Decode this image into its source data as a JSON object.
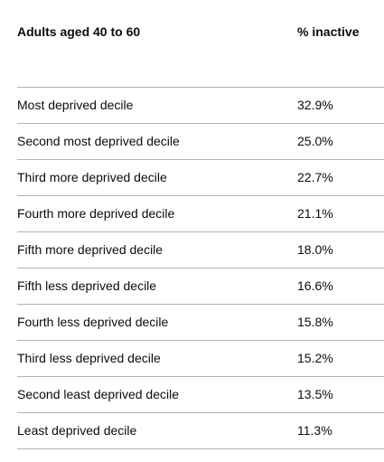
{
  "table": {
    "headers": [
      "Adults aged 40 to 60",
      "% inactive"
    ],
    "rows": [
      [
        "Most deprived decile",
        "32.9%"
      ],
      [
        "Second most deprived decile",
        "25.0%"
      ],
      [
        "Third more deprived decile",
        "22.7%"
      ],
      [
        "Fourth more deprived decile",
        "21.1%"
      ],
      [
        "Fifth more deprived decile",
        "18.0%"
      ],
      [
        "Fifth less deprived decile",
        "16.6%"
      ],
      [
        "Fourth less deprived decile",
        "15.8%"
      ],
      [
        "Third less deprived decile",
        "15.2%"
      ],
      [
        "Second least deprived decile",
        "13.5%"
      ],
      [
        "Least deprived decile",
        "11.3%"
      ]
    ]
  }
}
